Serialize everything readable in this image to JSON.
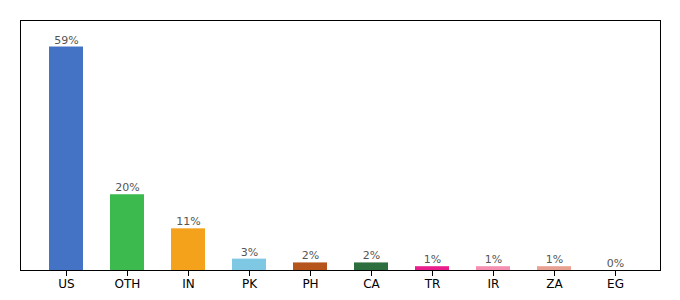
{
  "chart_data": {
    "type": "bar",
    "categories": [
      "US",
      "OTH",
      "IN",
      "PK",
      "PH",
      "CA",
      "TR",
      "IR",
      "ZA",
      "EG"
    ],
    "values": [
      59,
      20,
      11,
      3,
      2,
      2,
      1,
      1,
      1,
      0
    ],
    "value_labels": [
      "59%",
      "20%",
      "11%",
      "3%",
      "2%",
      "2%",
      "1%",
      "1%",
      "1%",
      "0%"
    ],
    "colors": [
      "#4472c4",
      "#3dba4e",
      "#f4a11b",
      "#7ec8e3",
      "#b5541b",
      "#2d6e3e",
      "#e91e8c",
      "#f48fb1",
      "#e8a090",
      "#f48fb1"
    ],
    "ylim": [
      0,
      66
    ],
    "grid": false,
    "data_labels": true,
    "tick_labels": "x"
  }
}
